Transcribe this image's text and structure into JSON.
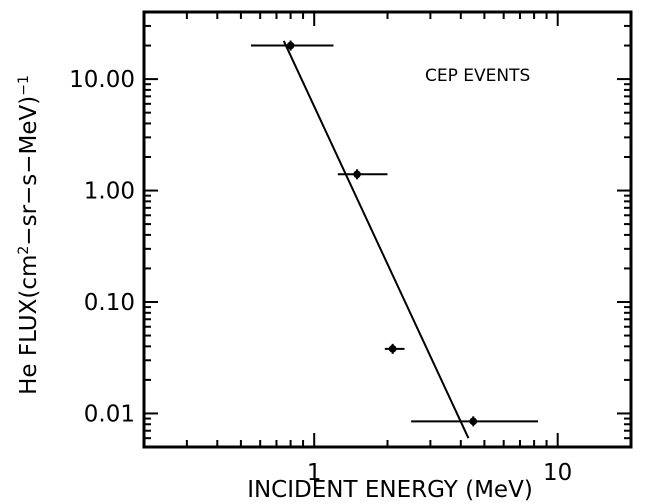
{
  "chart_data": {
    "type": "scatter",
    "title": "",
    "xlabel": "INCIDENT ENERGY (MeV)",
    "ylabel_main": "He FLUX(cm",
    "ylabel_sup": "2",
    "ylabel_rest": "−sr−s−MeV)",
    "ylabel_exp": "−1",
    "annotation": "CEP EVENTS",
    "x_scale": "log",
    "y_scale": "log",
    "xlim": [
      0.2,
      20
    ],
    "ylim": [
      0.005,
      40
    ],
    "x_ticks": [
      {
        "value": 1,
        "label": "1"
      },
      {
        "value": 10,
        "label": "10"
      }
    ],
    "y_ticks": [
      {
        "value": 10,
        "label": "10.00"
      },
      {
        "value": 1,
        "label": "1.00"
      },
      {
        "value": 0.1,
        "label": "0.10"
      },
      {
        "value": 0.01,
        "label": "0.01"
      }
    ],
    "points": [
      {
        "x": 0.8,
        "y": 20,
        "xerr_low": 0.55,
        "xerr_high": 1.2
      },
      {
        "x": 1.5,
        "y": 1.4,
        "xerr_low": 1.25,
        "xerr_high": 2.0
      },
      {
        "x": 2.1,
        "y": 0.038,
        "xerr_low": 1.95,
        "xerr_high": 2.35
      },
      {
        "x": 4.5,
        "y": 0.0085,
        "xerr_low": 2.5,
        "xerr_high": 8.3
      }
    ],
    "fit_line": {
      "x": [
        0.75,
        4.3
      ],
      "y": [
        22,
        0.006
      ]
    },
    "grid": false,
    "legend": "none"
  }
}
